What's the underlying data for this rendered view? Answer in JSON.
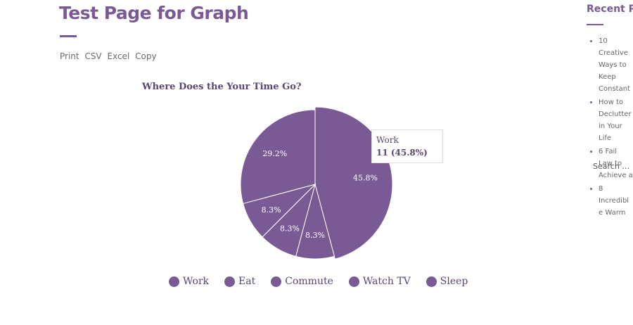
{
  "page": {
    "title": "Test Page for Graph"
  },
  "export_buttons": [
    "Print",
    "CSV",
    "Excel",
    "Copy"
  ],
  "tooltip": {
    "label": "Work",
    "value": "11 (45.8%)"
  },
  "sidebar": {
    "heading": "Recent Posts",
    "posts": [
      "10 Creative Ways to Keep Constant",
      "How to Declutter in Your Life",
      "6 Fail Law to Achieve a",
      "8 Incredible Warm"
    ],
    "search_placeholder": "Search …"
  },
  "colors": {
    "accent": "#7a5a94",
    "slice": "#7a5a94",
    "slice_border": "#ffffff",
    "label_text": "#ffffff"
  },
  "chart_data": {
    "type": "pie",
    "title": "Where Does the Your Time Go?",
    "categories": [
      "Work",
      "Eat",
      "Commute",
      "Watch TV",
      "Sleep"
    ],
    "values": [
      11,
      2,
      2,
      2,
      7
    ],
    "percent_labels": [
      "45.8%",
      "8.3%",
      "8.3%",
      "8.3%",
      "29.2%"
    ],
    "start_angle_deg": 0,
    "direction": "clockwise",
    "highlighted": "Work",
    "legend_position": "bottom"
  }
}
